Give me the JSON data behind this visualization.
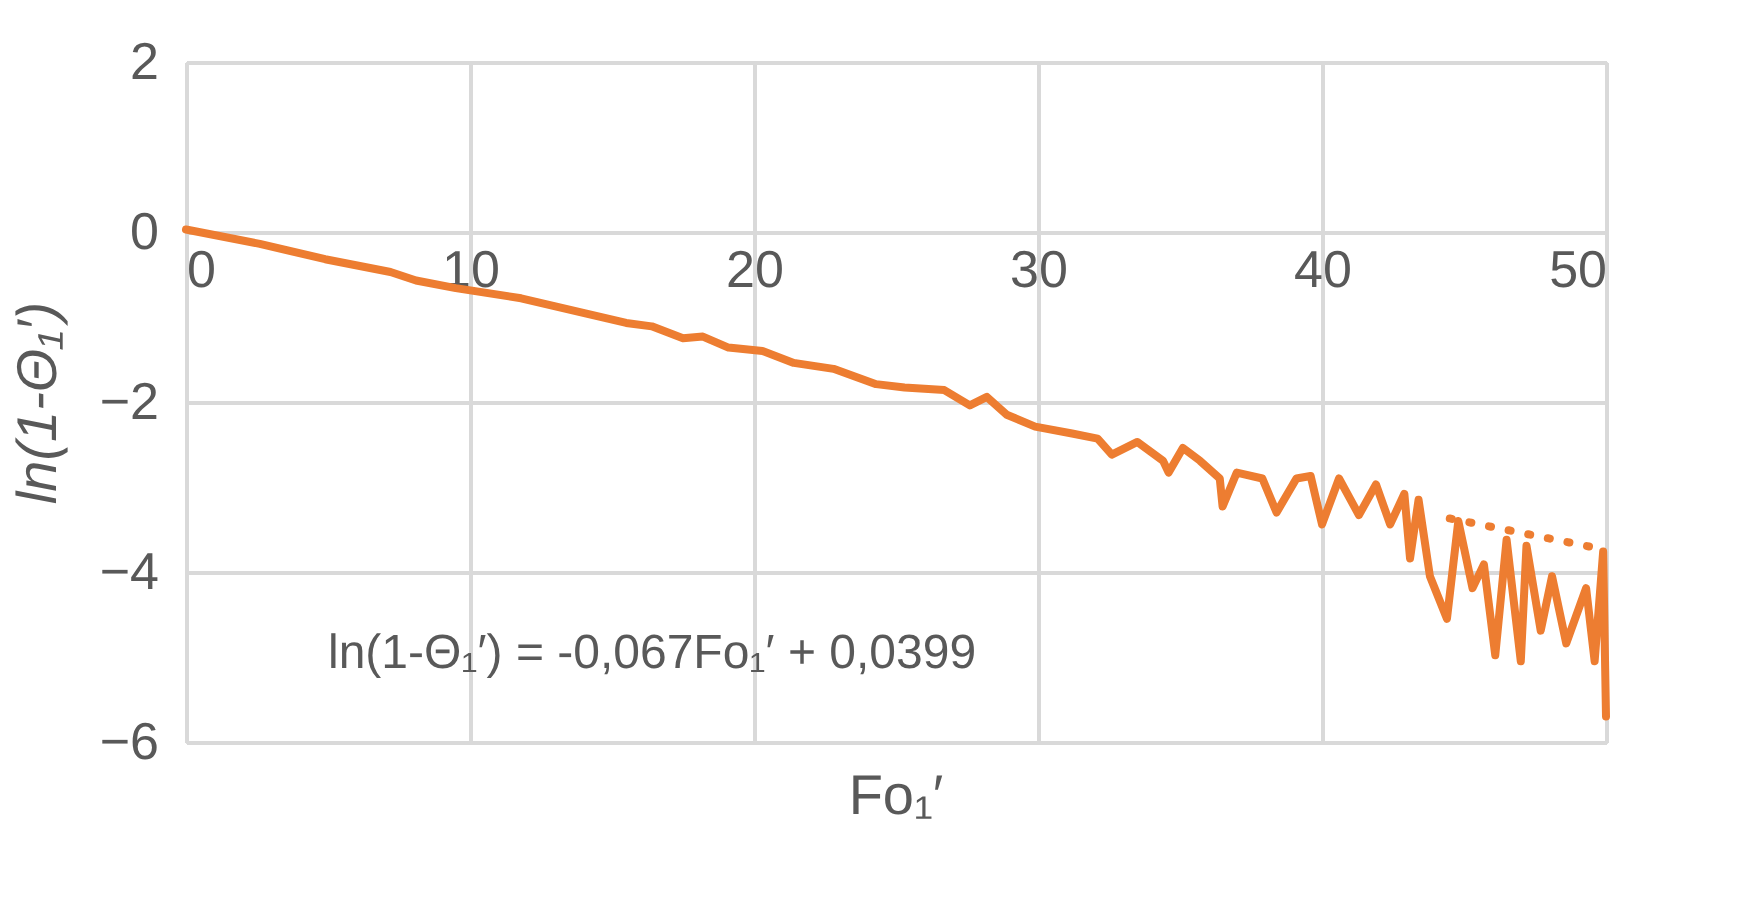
{
  "chart_data": {
    "type": "line",
    "xlabel": "Fo₁′",
    "ylabel": "ln(1-Θ₁′)",
    "annotations": [
      "ln(1-Θ₁′)  = -0,067Fo₁′ + 0,0399"
    ],
    "xlim": [
      0,
      50
    ],
    "xticks": [
      0,
      10,
      20,
      30,
      40,
      50
    ],
    "ylim": [
      -6,
      2
    ],
    "yticks": [
      -6,
      -4,
      -2,
      0,
      2
    ],
    "grid": true,
    "marker": "none",
    "series": [
      {
        "color": "#ed7d31",
        "line_style": "solid",
        "x": [
          0,
          2.6,
          4.9,
          7.2,
          8.1,
          9.5,
          11.8,
          14.1,
          15.5,
          16.4,
          17.5,
          18.2,
          19.1,
          20.3,
          21.4,
          22.8,
          24.3,
          25.3,
          26.7,
          27.6,
          28.2,
          28.9,
          29.9,
          31.2,
          32.1,
          32.6,
          33.5,
          34.4,
          34.6,
          35.1,
          35.7,
          36.4,
          36.5,
          37.0,
          37.9,
          38.4,
          39.1,
          39.6,
          40.0,
          40.6,
          41.3,
          41.9,
          42.4,
          42.9,
          43.1,
          43.4,
          43.8,
          44.4,
          44.8,
          45.3,
          45.7,
          46.1,
          46.5,
          47.0,
          47.2,
          47.7,
          48.1,
          48.6,
          49.3,
          49.6,
          49.9,
          50.0
        ],
        "values": [
          0.03,
          -0.14,
          -0.32,
          -0.47,
          -0.57,
          -0.66,
          -0.78,
          -0.96,
          -1.07,
          -1.11,
          -1.25,
          -1.23,
          -1.36,
          -1.4,
          -1.54,
          -1.61,
          -1.79,
          -1.83,
          -1.86,
          -2.04,
          -1.94,
          -2.15,
          -2.29,
          -2.37,
          -2.43,
          -2.62,
          -2.47,
          -2.69,
          -2.83,
          -2.54,
          -2.69,
          -2.9,
          -3.23,
          -2.83,
          -2.9,
          -3.3,
          -2.9,
          -2.87,
          -3.44,
          -2.9,
          -3.33,
          -2.97,
          -3.44,
          -3.08,
          -3.84,
          -3.15,
          -4.05,
          -4.55,
          -3.4,
          -4.19,
          -3.91,
          -4.98,
          -3.62,
          -5.05,
          -3.69,
          -4.69,
          -4.05,
          -4.84,
          -4.19,
          -5.05,
          -3.76,
          -5.7
        ]
      },
      {
        "color": "#ed7d31",
        "line_style": "dotted",
        "x": [
          44.5,
          50
        ],
        "values": [
          -3.37,
          -3.74
        ]
      }
    ]
  }
}
